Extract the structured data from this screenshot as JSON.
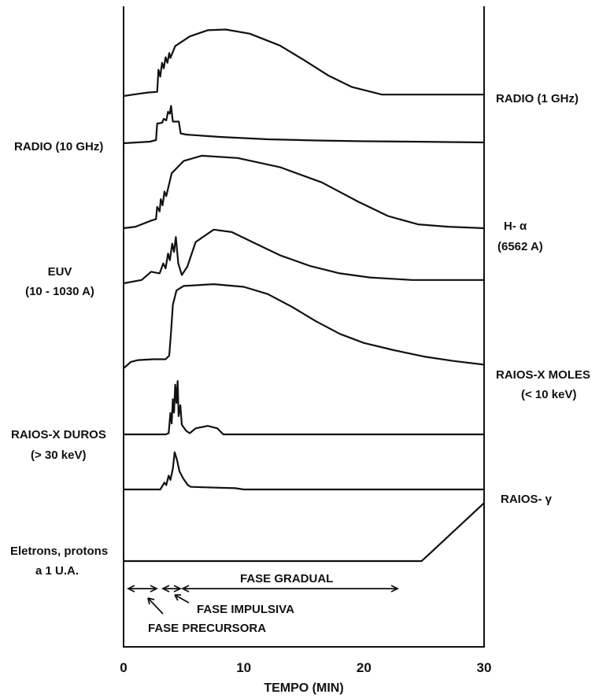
{
  "chart_data": {
    "type": "line",
    "title": "",
    "xlabel": "TEMPO (MIN)",
    "ylabel": "",
    "xlim": [
      0,
      30
    ],
    "x_ticks": [
      "0",
      "10",
      "20",
      "30"
    ],
    "grid": false,
    "legend": "none",
    "series": [
      {
        "name": "RADIO (1 GHz)",
        "side": "right",
        "points": [
          [
            0,
            0
          ],
          [
            0.8,
            0.02
          ],
          [
            2.0,
            0.05
          ],
          [
            2.8,
            0.06
          ],
          [
            2.9,
            0.38
          ],
          [
            3.05,
            0.28
          ],
          [
            3.2,
            0.48
          ],
          [
            3.35,
            0.4
          ],
          [
            3.5,
            0.56
          ],
          [
            3.65,
            0.48
          ],
          [
            3.8,
            0.62
          ],
          [
            3.9,
            0.55
          ],
          [
            4.3,
            0.72
          ],
          [
            5.5,
            0.86
          ],
          [
            7.0,
            0.95
          ],
          [
            8.5,
            0.96
          ],
          [
            10.5,
            0.9
          ],
          [
            13.0,
            0.73
          ],
          [
            15.0,
            0.52
          ],
          [
            17.0,
            0.3
          ],
          [
            19.0,
            0.13
          ],
          [
            21.5,
            0.02
          ],
          [
            30,
            0.02
          ]
        ]
      },
      {
        "name": "RADIO (10 GHz)",
        "side": "left",
        "points": [
          [
            0,
            0
          ],
          [
            2.2,
            0.04
          ],
          [
            2.7,
            0.08
          ],
          [
            2.8,
            0.5
          ],
          [
            3.2,
            0.52
          ],
          [
            3.35,
            0.62
          ],
          [
            3.55,
            0.58
          ],
          [
            3.7,
            0.8
          ],
          [
            3.85,
            0.75
          ],
          [
            3.95,
            0.95
          ],
          [
            4.1,
            0.55
          ],
          [
            4.6,
            0.55
          ],
          [
            4.75,
            0.25
          ],
          [
            5.2,
            0.22
          ],
          [
            8,
            0.16
          ],
          [
            12,
            0.1
          ],
          [
            16,
            0.07
          ],
          [
            20,
            0.05
          ],
          [
            24,
            0.04
          ],
          [
            30,
            0.02
          ]
        ]
      },
      {
        "name": "H- α (6562 A)",
        "side": "right",
        "points": [
          [
            0,
            0
          ],
          [
            1.0,
            0.02
          ],
          [
            2.3,
            0.1
          ],
          [
            2.7,
            0.12
          ],
          [
            2.8,
            0.28
          ],
          [
            3.0,
            0.22
          ],
          [
            3.1,
            0.38
          ],
          [
            3.25,
            0.3
          ],
          [
            3.4,
            0.48
          ],
          [
            3.55,
            0.42
          ],
          [
            4.0,
            0.72
          ],
          [
            5.0,
            0.88
          ],
          [
            6.5,
            0.95
          ],
          [
            9.5,
            0.92
          ],
          [
            13.0,
            0.8
          ],
          [
            16.5,
            0.6
          ],
          [
            19.5,
            0.35
          ],
          [
            22.0,
            0.16
          ],
          [
            24.5,
            0.05
          ],
          [
            27.0,
            0.02
          ],
          [
            30,
            0.0
          ]
        ]
      },
      {
        "name": "EUV (10 - 1030 A)",
        "side": "left",
        "points": [
          [
            0,
            0
          ],
          [
            1.5,
            0.04
          ],
          [
            2.3,
            0.14
          ],
          [
            3.0,
            0.12
          ],
          [
            3.3,
            0.24
          ],
          [
            3.5,
            0.18
          ],
          [
            3.7,
            0.36
          ],
          [
            3.85,
            0.28
          ],
          [
            4.05,
            0.48
          ],
          [
            4.2,
            0.38
          ],
          [
            4.35,
            0.56
          ],
          [
            4.55,
            0.24
          ],
          [
            4.85,
            0.1
          ],
          [
            5.3,
            0.2
          ],
          [
            6.0,
            0.5
          ],
          [
            7.5,
            0.65
          ],
          [
            9.0,
            0.62
          ],
          [
            11.0,
            0.48
          ],
          [
            13.0,
            0.34
          ],
          [
            15.5,
            0.21
          ],
          [
            18.0,
            0.12
          ],
          [
            20.5,
            0.07
          ],
          [
            24.0,
            0.04
          ],
          [
            30,
            0.04
          ]
        ]
      },
      {
        "name": "RAIOS-X MOLES (< 10 keV)",
        "side": "right",
        "points": [
          [
            0,
            0
          ],
          [
            0.6,
            0.07
          ],
          [
            1.2,
            0.09
          ],
          [
            2.5,
            0.1
          ],
          [
            3.5,
            0.1
          ],
          [
            3.8,
            0.14
          ],
          [
            3.95,
            0.4
          ],
          [
            4.1,
            0.7
          ],
          [
            4.4,
            0.86
          ],
          [
            5.0,
            0.91
          ],
          [
            7.5,
            0.93
          ],
          [
            10.0,
            0.9
          ],
          [
            12.0,
            0.82
          ],
          [
            14.0,
            0.68
          ],
          [
            16.0,
            0.52
          ],
          [
            18.0,
            0.38
          ],
          [
            20.0,
            0.28
          ],
          [
            22.5,
            0.2
          ],
          [
            25.0,
            0.13
          ],
          [
            27.5,
            0.08
          ],
          [
            30,
            0.04
          ]
        ]
      },
      {
        "name": "RAIOS-X DUROS (> 30 keV)",
        "side": "left",
        "points": [
          [
            0,
            0
          ],
          [
            3.5,
            0
          ],
          [
            3.75,
            0.02
          ],
          [
            3.9,
            0.35
          ],
          [
            4.0,
            0.18
          ],
          [
            4.1,
            0.58
          ],
          [
            4.2,
            0.36
          ],
          [
            4.3,
            0.82
          ],
          [
            4.4,
            0.52
          ],
          [
            4.5,
            0.88
          ],
          [
            4.58,
            0.3
          ],
          [
            4.72,
            0.48
          ],
          [
            4.85,
            0.16
          ],
          [
            5.2,
            0.06
          ],
          [
            5.5,
            0.02
          ],
          [
            6.0,
            0.1
          ],
          [
            7.0,
            0.14
          ],
          [
            7.8,
            0.1
          ],
          [
            8.3,
            0.0
          ],
          [
            30,
            0.0
          ]
        ]
      },
      {
        "name": "RAIOS- γ",
        "side": "right",
        "points": [
          [
            0,
            0
          ],
          [
            3.05,
            0
          ],
          [
            3.4,
            0.16
          ],
          [
            3.55,
            0.1
          ],
          [
            3.75,
            0.32
          ],
          [
            3.9,
            0.22
          ],
          [
            4.1,
            0.48
          ],
          [
            4.25,
            0.86
          ],
          [
            4.45,
            0.68
          ],
          [
            4.65,
            0.42
          ],
          [
            4.95,
            0.26
          ],
          [
            5.35,
            0.1
          ],
          [
            5.6,
            0.06
          ],
          [
            9.3,
            0.03
          ],
          [
            10.0,
            0.0
          ],
          [
            30,
            0.0
          ]
        ]
      },
      {
        "name": "Eletrons, protons a 1 U.A.",
        "side": "left",
        "points": [
          [
            0,
            0
          ],
          [
            24.8,
            0
          ],
          [
            25.5,
            0.12
          ],
          [
            30,
            0.9
          ]
        ]
      }
    ],
    "phases": [
      {
        "label": "FASE PRECURSORA",
        "range": [
          0,
          3
        ]
      },
      {
        "label": "FASE IMPULSIVA",
        "range": [
          3.2,
          4.8
        ]
      },
      {
        "label": "FASE GRADUAL",
        "range": [
          4.8,
          22.5
        ]
      }
    ]
  },
  "labels": {
    "radio_1ghz": "RADIO (1 GHz)",
    "radio_10ghz": "RADIO (10 GHz)",
    "halpha_1": "H- α",
    "halpha_2": "(6562 A)",
    "euv_1": "EUV",
    "euv_2": "(10 - 1030 A)",
    "xmoles_1": "RAIOS-X  MOLES",
    "xmoles_2": "(< 10 keV)",
    "xduros_1": "RAIOS-X DUROS",
    "xduros_2": "(> 30 keV)",
    "gamma": "RAIOS- γ",
    "particles_1": "Eletrons, protons",
    "particles_2": "a 1 U.A.",
    "phase_gradual": "FASE GRADUAL",
    "phase_impulsiva": "FASE IMPULSIVA",
    "phase_precursora": "FASE PRECURSORA"
  }
}
